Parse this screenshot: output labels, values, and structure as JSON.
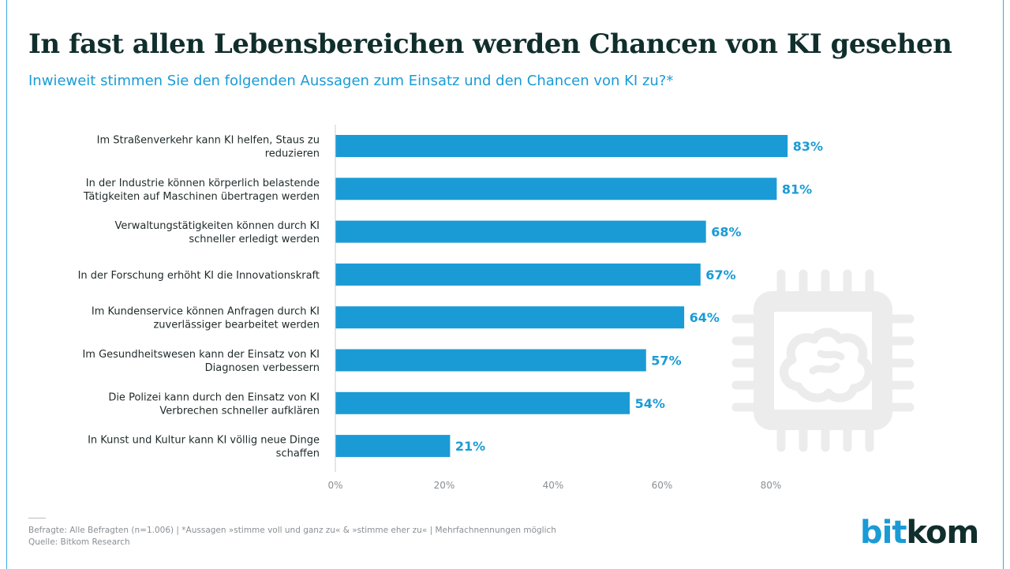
{
  "header": {
    "title": "In fast allen Lebensbereichen werden Chancen von KI gesehen",
    "subtitle": "Inwieweit stimmen Sie den folgenden Aussagen zum Einsatz und den Chancen von KI zu?*"
  },
  "chart_data": {
    "type": "bar",
    "orientation": "horizontal",
    "title": "In fast allen Lebensbereichen werden Chancen von KI gesehen",
    "subtitle": "Inwieweit stimmen Sie den folgenden Aussagen zum Einsatz und den Chancen von KI zu?*",
    "categories": [
      [
        "Im Straßenverkehr kann KI helfen, Staus zu",
        "reduzieren"
      ],
      [
        "In der Industrie können körperlich belastende",
        "Tätigkeiten auf Maschinen übertragen werden"
      ],
      [
        "Verwaltungstätigkeiten können durch KI",
        "schneller erledigt werden"
      ],
      [
        "In der Forschung erhöht KI die Innovationskraft"
      ],
      [
        "Im Kundenservice können Anfragen durch KI",
        "zuverlässiger bearbeitet werden"
      ],
      [
        "Im Gesundheitswesen kann der Einsatz von KI",
        "Diagnosen verbessern"
      ],
      [
        "Die Polizei kann durch den Einsatz von KI",
        "Verbrechen schneller aufklären"
      ],
      [
        "In Kunst und Kultur kann KI völlig neue Dinge",
        "schaffen"
      ]
    ],
    "values": [
      83,
      81,
      68,
      67,
      64,
      57,
      54,
      21
    ],
    "value_labels": [
      "83%",
      "81%",
      "68%",
      "67%",
      "64%",
      "57%",
      "54%",
      "21%"
    ],
    "xlim": [
      0,
      100
    ],
    "x_ticks": [
      0,
      20,
      40,
      60,
      80
    ],
    "x_tick_labels": [
      "0%",
      "20%",
      "40%",
      "60%",
      "80%"
    ],
    "bar_color": "#1a9bd6",
    "value_label_color": "#1a9bd6",
    "grid": false
  },
  "footer": {
    "note": "Befragte: Alle Befragten (n=1.006) | *Aussagen »stimme voll und ganz zu« & »stimme eher zu« | Mehrfachnennungen möglich",
    "source": "Quelle: Bitkom Research",
    "logo_part1": "bit",
    "logo_part2": "kom"
  },
  "colors": {
    "accent": "#1a9bd6",
    "title": "#102e2c",
    "watermark": "#eeeeee"
  },
  "icons": {
    "watermark": "ai-chip-brain-icon"
  }
}
